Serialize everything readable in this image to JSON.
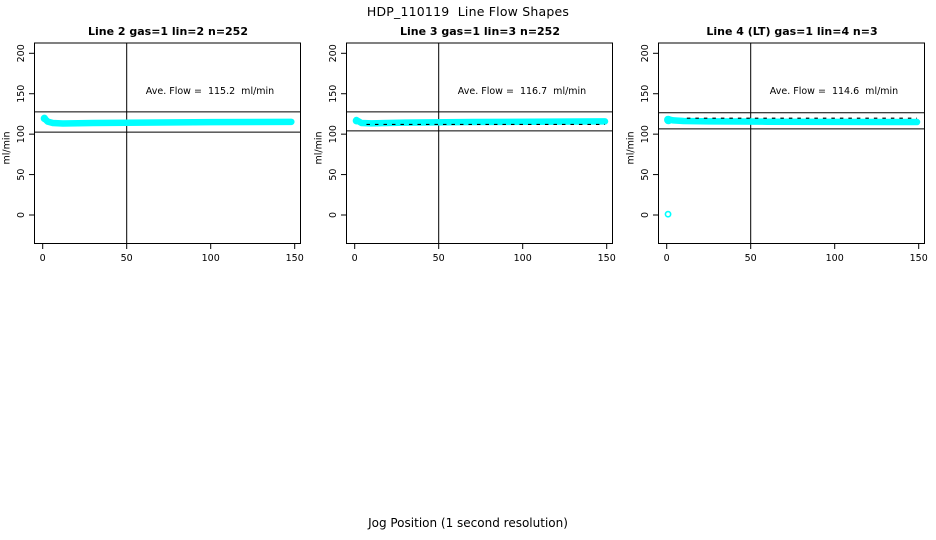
{
  "title": "HDP_110119  Line Flow Shapes",
  "xlabel": "Jog Position (1 second resolution)",
  "ylabel": "ml/min",
  "colors": {
    "series": "#00ffff",
    "axis": "#000000",
    "background": "#ffffff"
  },
  "axes": {
    "x_ticks": [
      0,
      50,
      100,
      150
    ],
    "y_ticks": [
      0,
      50,
      100,
      150,
      200
    ],
    "xlim": [
      -5,
      153
    ],
    "ylim": [
      -35,
      213
    ]
  },
  "chart_data": [
    {
      "type": "scatter",
      "title": "Line 2 gas=1 lin=2 n=252",
      "annotation": "Ave. Flow =  115.2  ml/min",
      "ave_flow": 115.2,
      "n": 252,
      "ref_vline_x": 50,
      "upper_limit": 127.5,
      "lower_limit": 102.5,
      "band_points": [
        [
          1,
          119.5
        ],
        [
          3,
          115.5
        ],
        [
          6,
          113.8
        ],
        [
          12,
          113.2
        ],
        [
          30,
          113.8
        ],
        [
          60,
          114.3
        ],
        [
          100,
          114.8
        ],
        [
          148,
          115.2
        ]
      ],
      "start_marker": [
        1,
        119.5
      ],
      "start_marker_r": 2.8,
      "fleck": null,
      "outlier": null
    },
    {
      "type": "scatter",
      "title": "Line 3 gas=1 lin=3 n=252",
      "annotation": "Ave. Flow =  116.7  ml/min",
      "ave_flow": 116.7,
      "n": 252,
      "ref_vline_x": 50,
      "upper_limit": 127.5,
      "lower_limit": 104,
      "band_points": [
        [
          1,
          117.5
        ],
        [
          4,
          113.8
        ],
        [
          10,
          113.4
        ],
        [
          30,
          114.2
        ],
        [
          70,
          115.0
        ],
        [
          149,
          115.8
        ]
      ],
      "start_marker": [
        1,
        116.5
      ],
      "start_marker_r": 2.8,
      "fleck": {
        "y": 112,
        "x1": 7,
        "x2": 149
      },
      "outlier": null
    },
    {
      "type": "scatter",
      "title": "Line 4 (LT) gas=1 lin=4 n=3",
      "annotation": "Ave. Flow =  114.6  ml/min",
      "ave_flow": 114.6,
      "n": 3,
      "ref_vline_x": 50,
      "upper_limit": 126.5,
      "lower_limit": 106.5,
      "band_points": [
        [
          0.5,
          118.5
        ],
        [
          4,
          117.0
        ],
        [
          10,
          116.2
        ],
        [
          25,
          115.8
        ],
        [
          60,
          115.4
        ],
        [
          149,
          115.0
        ]
      ],
      "start_marker": [
        1,
        117.5
      ],
      "start_marker_r": 3.4,
      "fleck": {
        "y": 119.8,
        "x1": 12,
        "x2": 149
      },
      "outlier": [
        0.8,
        1
      ]
    }
  ]
}
